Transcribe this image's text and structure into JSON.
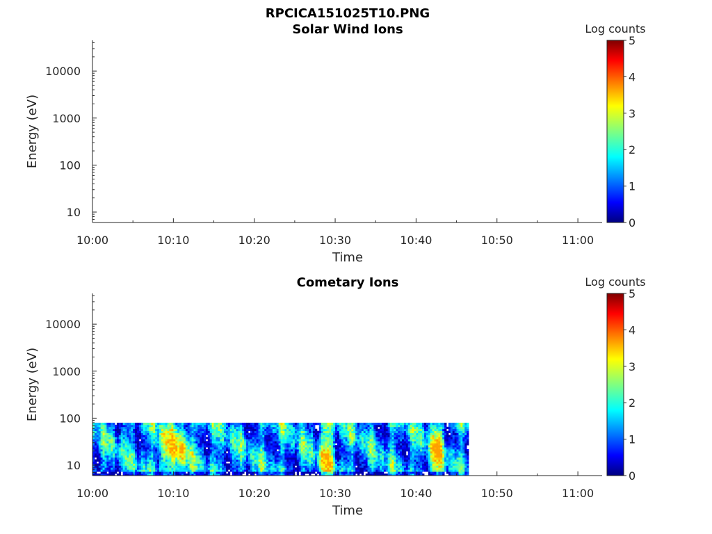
{
  "figure": {
    "title": "RPCICA151025T10.PNG"
  },
  "chart_data": [
    {
      "type": "heatmap",
      "title": "Solar Wind Ions",
      "xlabel": "Time",
      "ylabel": "Energy (eV)",
      "x_ticks": [
        "10:00",
        "10:10",
        "10:20",
        "10:30",
        "10:40",
        "10:50",
        "11:00"
      ],
      "y_ticks": [
        "10",
        "100",
        "1000",
        "10000"
      ],
      "y_scale": "log",
      "xlim": [
        "10:00",
        "11:03"
      ],
      "ylim": [
        6,
        45000
      ],
      "colorbar": {
        "label": "Log counts",
        "ticks": [
          "0",
          "1",
          "2",
          "3",
          "4",
          "5"
        ],
        "range": [
          0,
          5
        ],
        "colormap": "jet"
      },
      "data": null
    },
    {
      "type": "heatmap",
      "title": "Cometary Ions",
      "xlabel": "Time",
      "ylabel": "Energy (eV)",
      "x_ticks": [
        "10:00",
        "10:10",
        "10:20",
        "10:30",
        "10:40",
        "10:50",
        "11:00"
      ],
      "y_ticks": [
        "10",
        "100",
        "1000",
        "10000"
      ],
      "y_scale": "log",
      "xlim": [
        "10:00",
        "11:03"
      ],
      "ylim": [
        6,
        45000
      ],
      "colorbar": {
        "label": "Log counts",
        "ticks": [
          "0",
          "1",
          "2",
          "3",
          "4",
          "5"
        ],
        "range": [
          0,
          5
        ],
        "colormap": "jet"
      },
      "data": {
        "time_range": [
          "10:00",
          "10:46.5"
        ],
        "energy_range_eV": [
          6,
          80
        ],
        "typical_log_counts": [
          0.5,
          2.5
        ],
        "peak_log_counts": 3.6,
        "peak_times": [
          "10:09",
          "10:11",
          "10:29",
          "10:42.5"
        ]
      }
    }
  ]
}
